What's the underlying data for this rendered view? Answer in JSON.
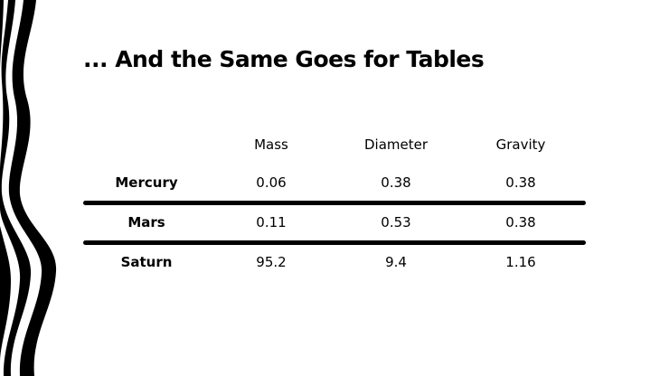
{
  "slide": {
    "title": "... And the Same Goes for Tables"
  },
  "table": {
    "columns": [
      "",
      "Mass",
      "Diameter",
      "Gravity"
    ],
    "rows": [
      {
        "name": "Mercury",
        "mass": "0.06",
        "diameter": "0.38",
        "gravity": "0.38"
      },
      {
        "name": "Mars",
        "mass": "0.11",
        "diameter": "0.53",
        "gravity": "0.38"
      },
      {
        "name": "Saturn",
        "mass": "95.2",
        "diameter": "9.4",
        "gravity": "1.16"
      }
    ]
  },
  "colors": {
    "background": "#ffffff",
    "ink": "#000000"
  }
}
